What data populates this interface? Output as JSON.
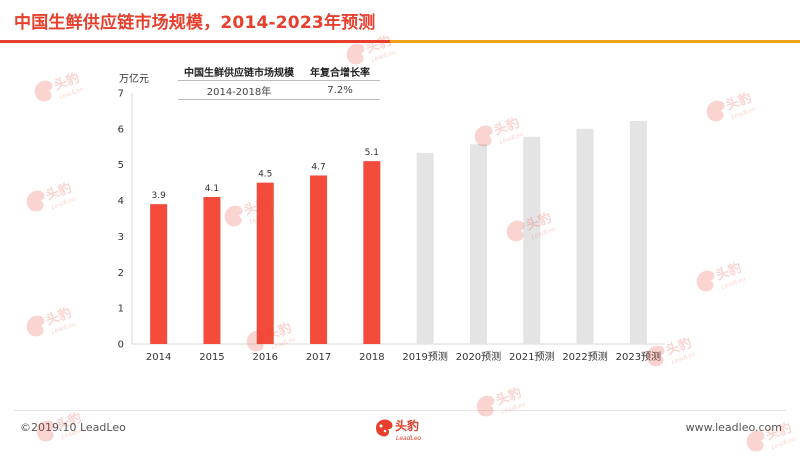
{
  "title": "中国生鲜供应链市场规模，2014-2023年预测",
  "colors": {
    "title": "#e63f2d",
    "accent_bar": "#f44c3c",
    "forecast_bar": "#e4e4e4",
    "rule_left": "#e63f2d",
    "rule_right": "#f5a21b"
  },
  "table": {
    "headers": [
      "中国生鲜供应链市场规模",
      "年复合增长率"
    ],
    "rows": [
      [
        "2014-2018年",
        "7.2%"
      ]
    ]
  },
  "chart_data": {
    "type": "bar",
    "ylabel": "万亿元",
    "ylim": [
      0,
      7
    ],
    "yticks": [
      0,
      1,
      2,
      3,
      4,
      5,
      6,
      7
    ],
    "categories": [
      "2014",
      "2015",
      "2016",
      "2017",
      "2018",
      "2019预测",
      "2020预测",
      "2021预测",
      "2022预测",
      "2023预测"
    ],
    "values": [
      3.9,
      4.1,
      4.5,
      4.7,
      5.1,
      5.33,
      5.57,
      5.78,
      6.0,
      6.22
    ],
    "data_labels": [
      "3.9",
      "4.1",
      "4.5",
      "4.7",
      "5.1",
      "",
      "",
      "",
      "",
      ""
    ],
    "forecast_from_index": 5,
    "grid": false
  },
  "footer": {
    "copyright": "©2019.10 LeadLeo",
    "website": "www.leadleo.com",
    "logo_text": "头豹",
    "logo_sub": "LeadLeo"
  },
  "watermark": {
    "text": "头豹",
    "sub": "LeadLeo",
    "icon": "leopard-logo-icon"
  }
}
